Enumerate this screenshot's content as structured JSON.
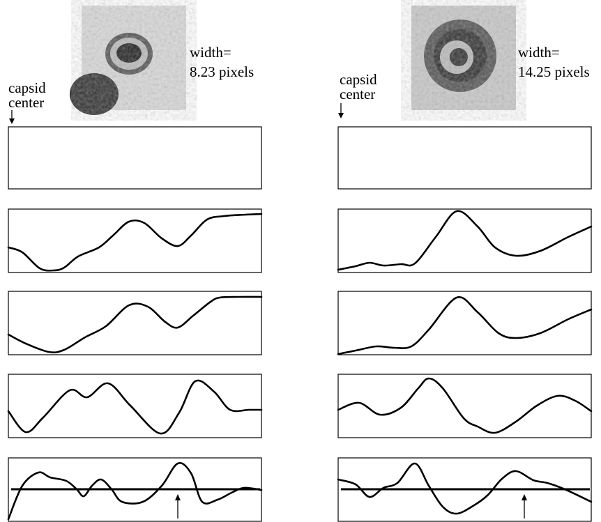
{
  "left": {
    "width_label": "width=",
    "width_value": "8.23 pixels",
    "center_label_1": "capsid",
    "center_label_2": "center"
  },
  "right": {
    "width_label": "width=",
    "width_value": "14.25 pixels",
    "center_label_1": "capsid",
    "center_label_2": "center"
  }
}
